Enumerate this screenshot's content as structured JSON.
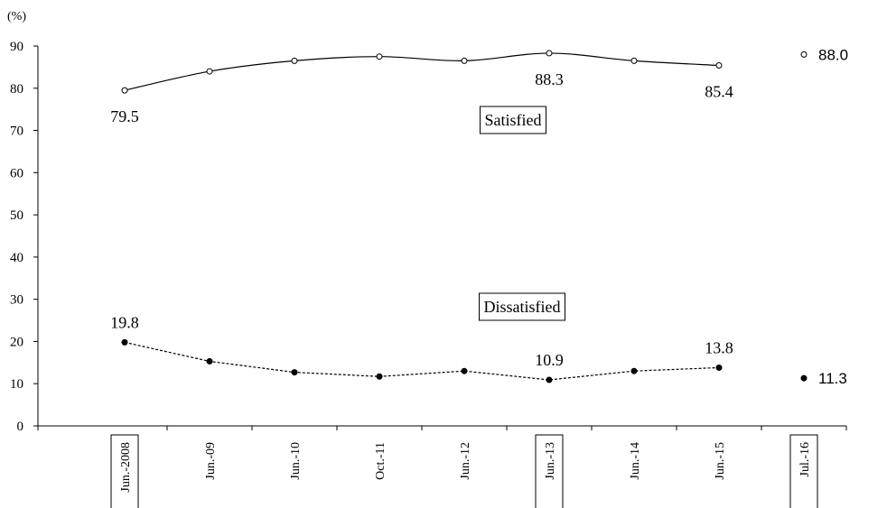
{
  "chart_data": {
    "type": "line",
    "ylabel": "(%)",
    "ylim": [
      0,
      90
    ],
    "yticks": [
      0,
      10,
      20,
      30,
      40,
      50,
      60,
      70,
      80,
      90
    ],
    "categories": [
      "Jun.-2008",
      "Jun.-09",
      "Jun.-10",
      "Oct.-11",
      "Jun.-12",
      "Jun.-13",
      "Jun.-14",
      "Jun.-15",
      "Jul.-16"
    ],
    "boxed_categories": [
      "Jun.-2008",
      "Jun.-13",
      "Jul.-16"
    ],
    "series": [
      {
        "name": "Satisfied",
        "values": [
          79.5,
          84.0,
          86.5,
          87.5,
          86.5,
          88.3,
          86.5,
          85.4,
          88.0
        ],
        "marker": "open-circle",
        "line_style": "solid",
        "connected_points": 8,
        "labels": {
          "0": "79.5",
          "5": "88.3",
          "7": "85.4",
          "8": "88.0"
        }
      },
      {
        "name": "Dissatisfied",
        "values": [
          19.8,
          15.3,
          12.7,
          11.7,
          13.0,
          10.9,
          13.0,
          13.8,
          11.3
        ],
        "marker": "filled-circle",
        "line_style": "dashed",
        "connected_points": 8,
        "labels": {
          "0": "19.8",
          "5": "10.9",
          "7": "13.8",
          "8": "11.3"
        }
      }
    ],
    "grid": false,
    "legend": "boxed labels inside plot area"
  }
}
